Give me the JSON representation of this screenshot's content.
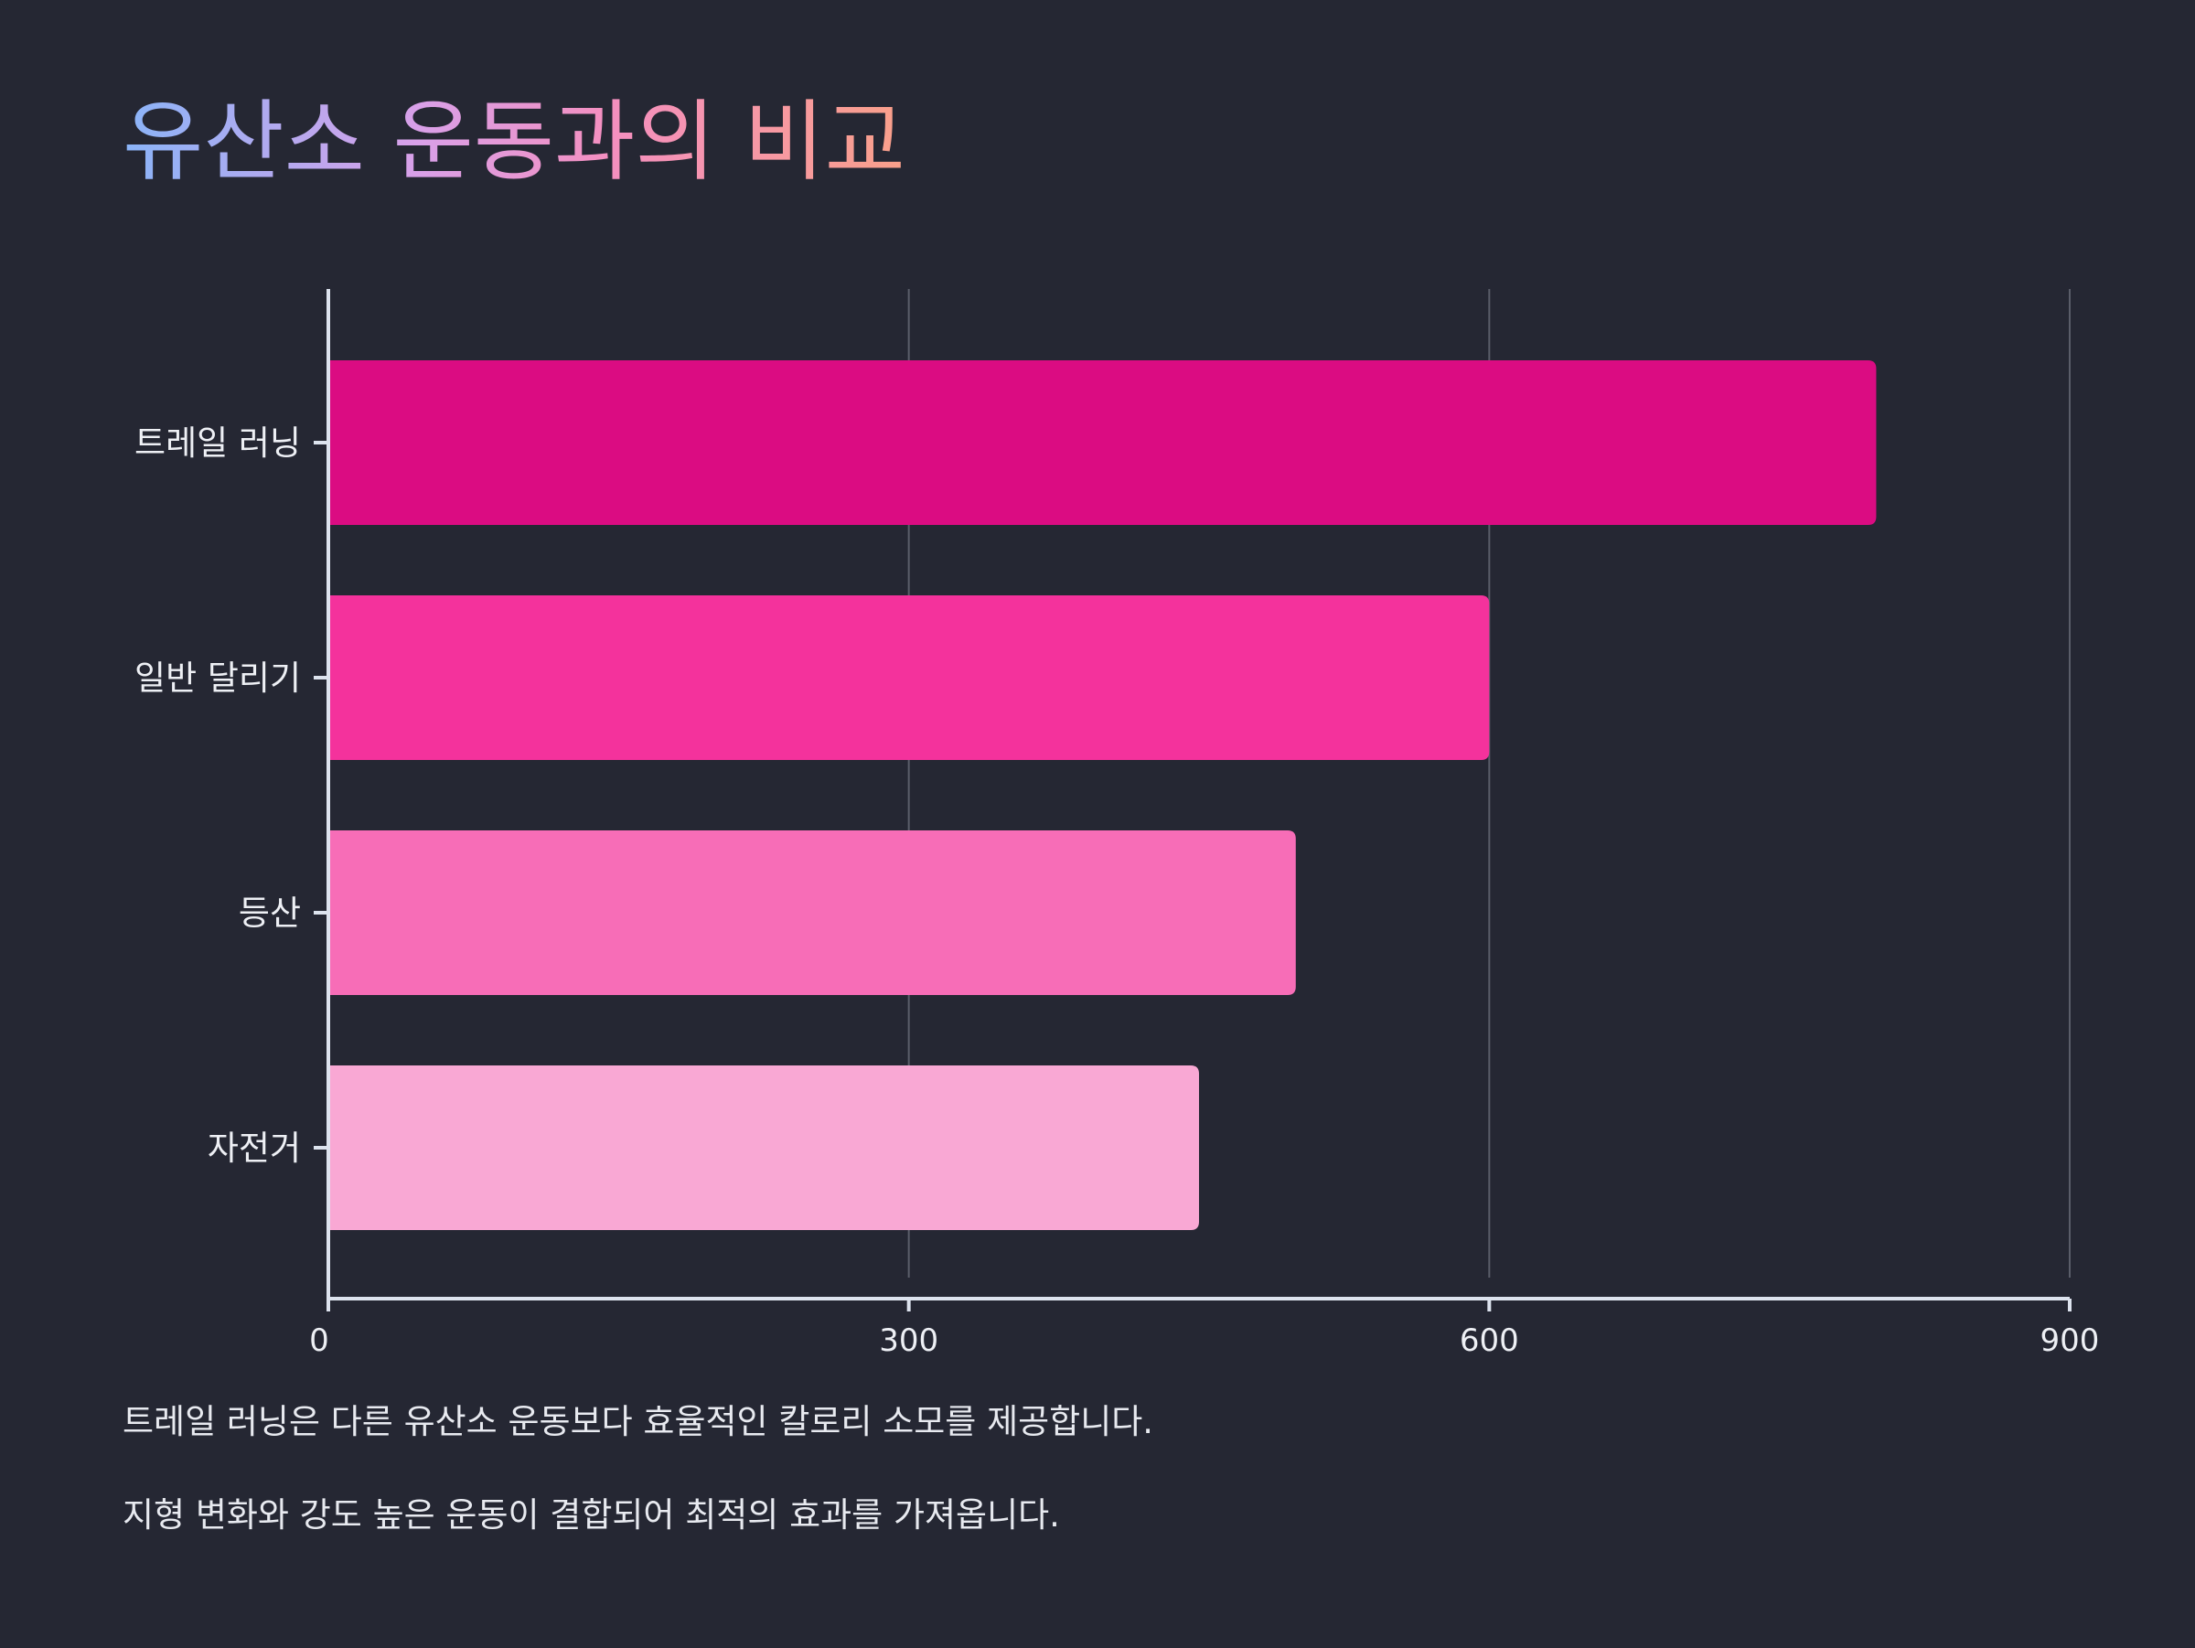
{
  "chart_data": {
    "type": "bar",
    "orientation": "horizontal",
    "title": "유산소 운동과의 비교",
    "categories": [
      "트레일 러닝",
      "일반 달리기",
      "등산",
      "자전거"
    ],
    "values": [
      800,
      600,
      500,
      450
    ],
    "colors": [
      "#db0c82",
      "#f4329c",
      "#f76db7",
      "#f9a8d4"
    ],
    "xlim": [
      0,
      900
    ],
    "xticks": [
      "0",
      "300",
      "600",
      "900"
    ],
    "xlabel": "",
    "ylabel": "",
    "grid": "vertical",
    "legend": "none"
  },
  "notes": [
    "트레일 러닝은 다른 유산소 운동보다 효율적인 칼로리 소모를 제공합니다.",
    "지형 변화와 강도 높은 운동이 결합되어 최적의 효과를 가져옵니다."
  ],
  "colors": {
    "background": "#252733",
    "axis": "#dde3ee",
    "grid": "#5a5d69",
    "text": "#eef0f5"
  }
}
